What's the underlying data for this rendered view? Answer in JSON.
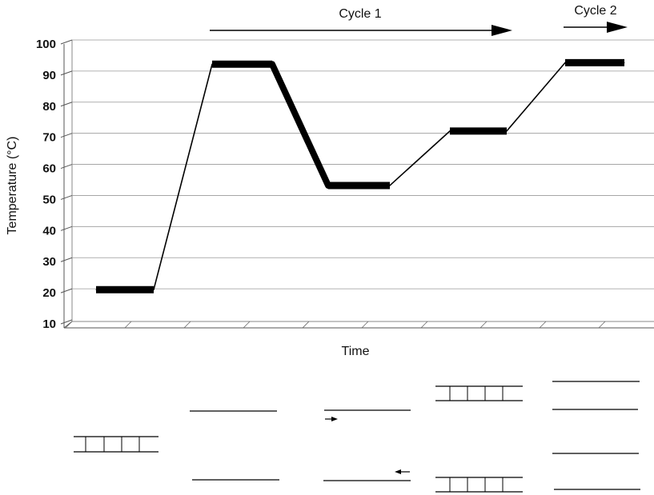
{
  "chart_data": {
    "type": "line",
    "title": "",
    "xlabel": "Time",
    "ylabel": "Temperature (°C)",
    "ylim": [
      10,
      100
    ],
    "y_ticks": [
      10,
      20,
      30,
      40,
      50,
      60,
      70,
      80,
      90,
      100
    ],
    "grid": true,
    "series": [
      {
        "x": [
          0,
          1,
          2,
          3,
          4,
          5,
          6,
          7,
          8,
          9,
          10,
          11
        ],
        "y": [
          21,
          21,
          93.5,
          93.5,
          54.5,
          54.5,
          72,
          72,
          94,
          94,
          94,
          94
        ]
      }
    ],
    "annotations": [
      {
        "text": "Cycle 1",
        "arrow": "right"
      },
      {
        "text": "Cycle 2",
        "arrow": "right"
      }
    ]
  },
  "colors": {
    "line": "#000000",
    "grid": "#999999"
  },
  "dna_diagram": {
    "description": "",
    "stages": [
      "double-stranded",
      "separated strands",
      "primers annealed",
      "extension",
      "two copies"
    ]
  }
}
